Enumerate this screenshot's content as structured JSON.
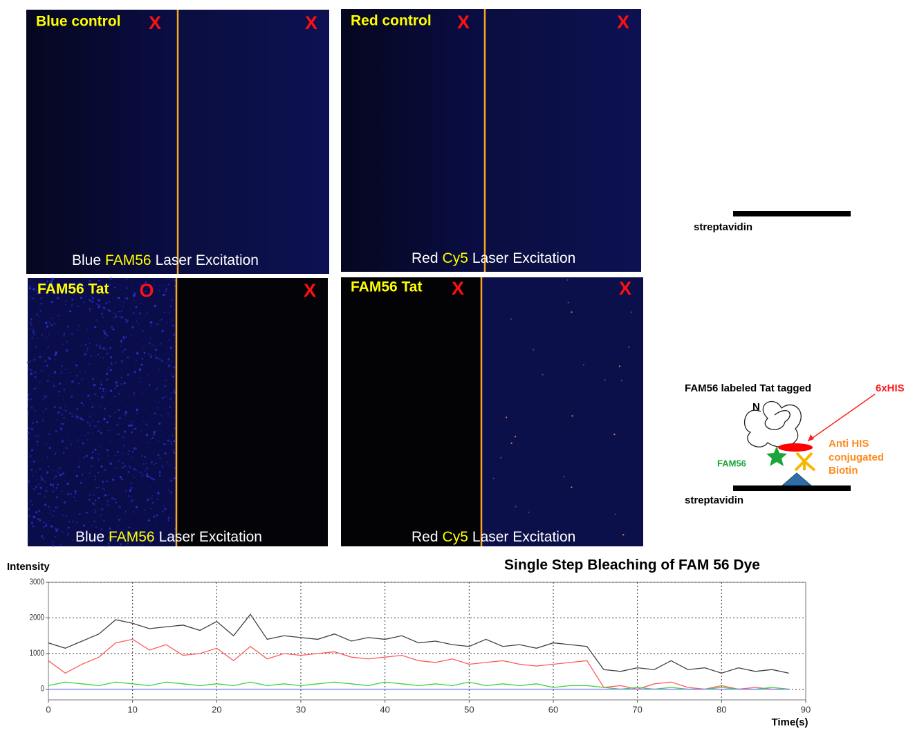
{
  "panels": [
    {
      "title": "Blue control",
      "marks": [
        "X",
        "X"
      ],
      "laser": [
        "Blue",
        "FAM56",
        "Laser Excitation"
      ]
    },
    {
      "title": "Red control",
      "marks": [
        "X",
        "X"
      ],
      "laser": [
        "Red",
        "Cy5",
        "Laser Excitation"
      ]
    },
    {
      "title": "FAM56 Tat",
      "marks": [
        "O",
        "X"
      ],
      "laser": [
        "Blue",
        "FAM56",
        "Laser Excitation"
      ]
    },
    {
      "title": "FAM56 Tat",
      "marks": [
        "X",
        "X"
      ],
      "laser": [
        "Red",
        "Cy5",
        "Laser Excitation"
      ]
    }
  ],
  "diagram": {
    "top_label": "streptavidin",
    "caption": [
      "FAM56 labeled  Tat  tagged",
      "6xHIS"
    ],
    "n_terminus": "N",
    "dye": "FAM56",
    "antibody": [
      "Anti HIS",
      "conjugated",
      "Biotin"
    ],
    "bottom_label": "streptavidin"
  },
  "chart_data": {
    "type": "line",
    "title": "Single Step Bleaching of FAM 56 Dye",
    "ylabel": "Intensity",
    "xlabel": "Time(s)",
    "x": [
      0,
      2,
      4,
      6,
      8,
      10,
      12,
      14,
      16,
      18,
      20,
      22,
      24,
      26,
      28,
      30,
      32,
      34,
      36,
      38,
      40,
      42,
      44,
      46,
      48,
      50,
      52,
      54,
      56,
      58,
      60,
      62,
      64,
      66,
      68,
      70,
      72,
      74,
      76,
      78,
      80,
      82,
      84,
      86,
      88
    ],
    "series": [
      {
        "color": "#404040",
        "values": [
          1300,
          1150,
          1350,
          1550,
          1950,
          1850,
          1700,
          1750,
          1800,
          1650,
          1900,
          1500,
          2100,
          1400,
          1500,
          1450,
          1400,
          1550,
          1350,
          1450,
          1400,
          1500,
          1300,
          1350,
          1250,
          1200,
          1400,
          1200,
          1250,
          1150,
          1300,
          1250,
          1200,
          550,
          500,
          600,
          550,
          800,
          550,
          600,
          450,
          600,
          500,
          550,
          450
        ]
      },
      {
        "color": "#ff5a5a",
        "values": [
          800,
          450,
          700,
          900,
          1300,
          1400,
          1100,
          1250,
          950,
          1000,
          1150,
          800,
          1200,
          850,
          1000,
          950,
          1000,
          1050,
          900,
          850,
          900,
          950,
          800,
          750,
          850,
          700,
          750,
          800,
          700,
          650,
          700,
          750,
          800,
          50,
          100,
          0,
          150,
          200,
          50,
          0,
          100,
          0,
          50,
          0,
          0
        ]
      },
      {
        "color": "#3ad13a",
        "values": [
          100,
          200,
          150,
          100,
          200,
          150,
          100,
          200,
          150,
          100,
          150,
          100,
          200,
          100,
          150,
          100,
          150,
          200,
          150,
          100,
          200,
          150,
          100,
          150,
          100,
          200,
          100,
          150,
          100,
          150,
          50,
          100,
          100,
          50,
          0,
          50,
          0,
          50,
          0,
          0,
          50,
          0,
          0,
          50,
          0
        ]
      },
      {
        "color": "#8080ff",
        "values": [
          0,
          0,
          0,
          0,
          0,
          0,
          0,
          0,
          0,
          0,
          0,
          0,
          0,
          0,
          0,
          0,
          0,
          0,
          0,
          0,
          0,
          0,
          0,
          0,
          0,
          0,
          0,
          0,
          0,
          0,
          0,
          0,
          0,
          0,
          0,
          0,
          0,
          0,
          0,
          0,
          0,
          0,
          0,
          0,
          0
        ]
      }
    ],
    "xlim": [
      0,
      90
    ],
    "xticks": [
      0,
      10,
      20,
      30,
      40,
      50,
      60,
      70,
      80,
      90
    ],
    "ylim": [
      -300,
      3000
    ],
    "yticks": [
      0,
      1000,
      2000,
      3000
    ],
    "grid": true
  }
}
